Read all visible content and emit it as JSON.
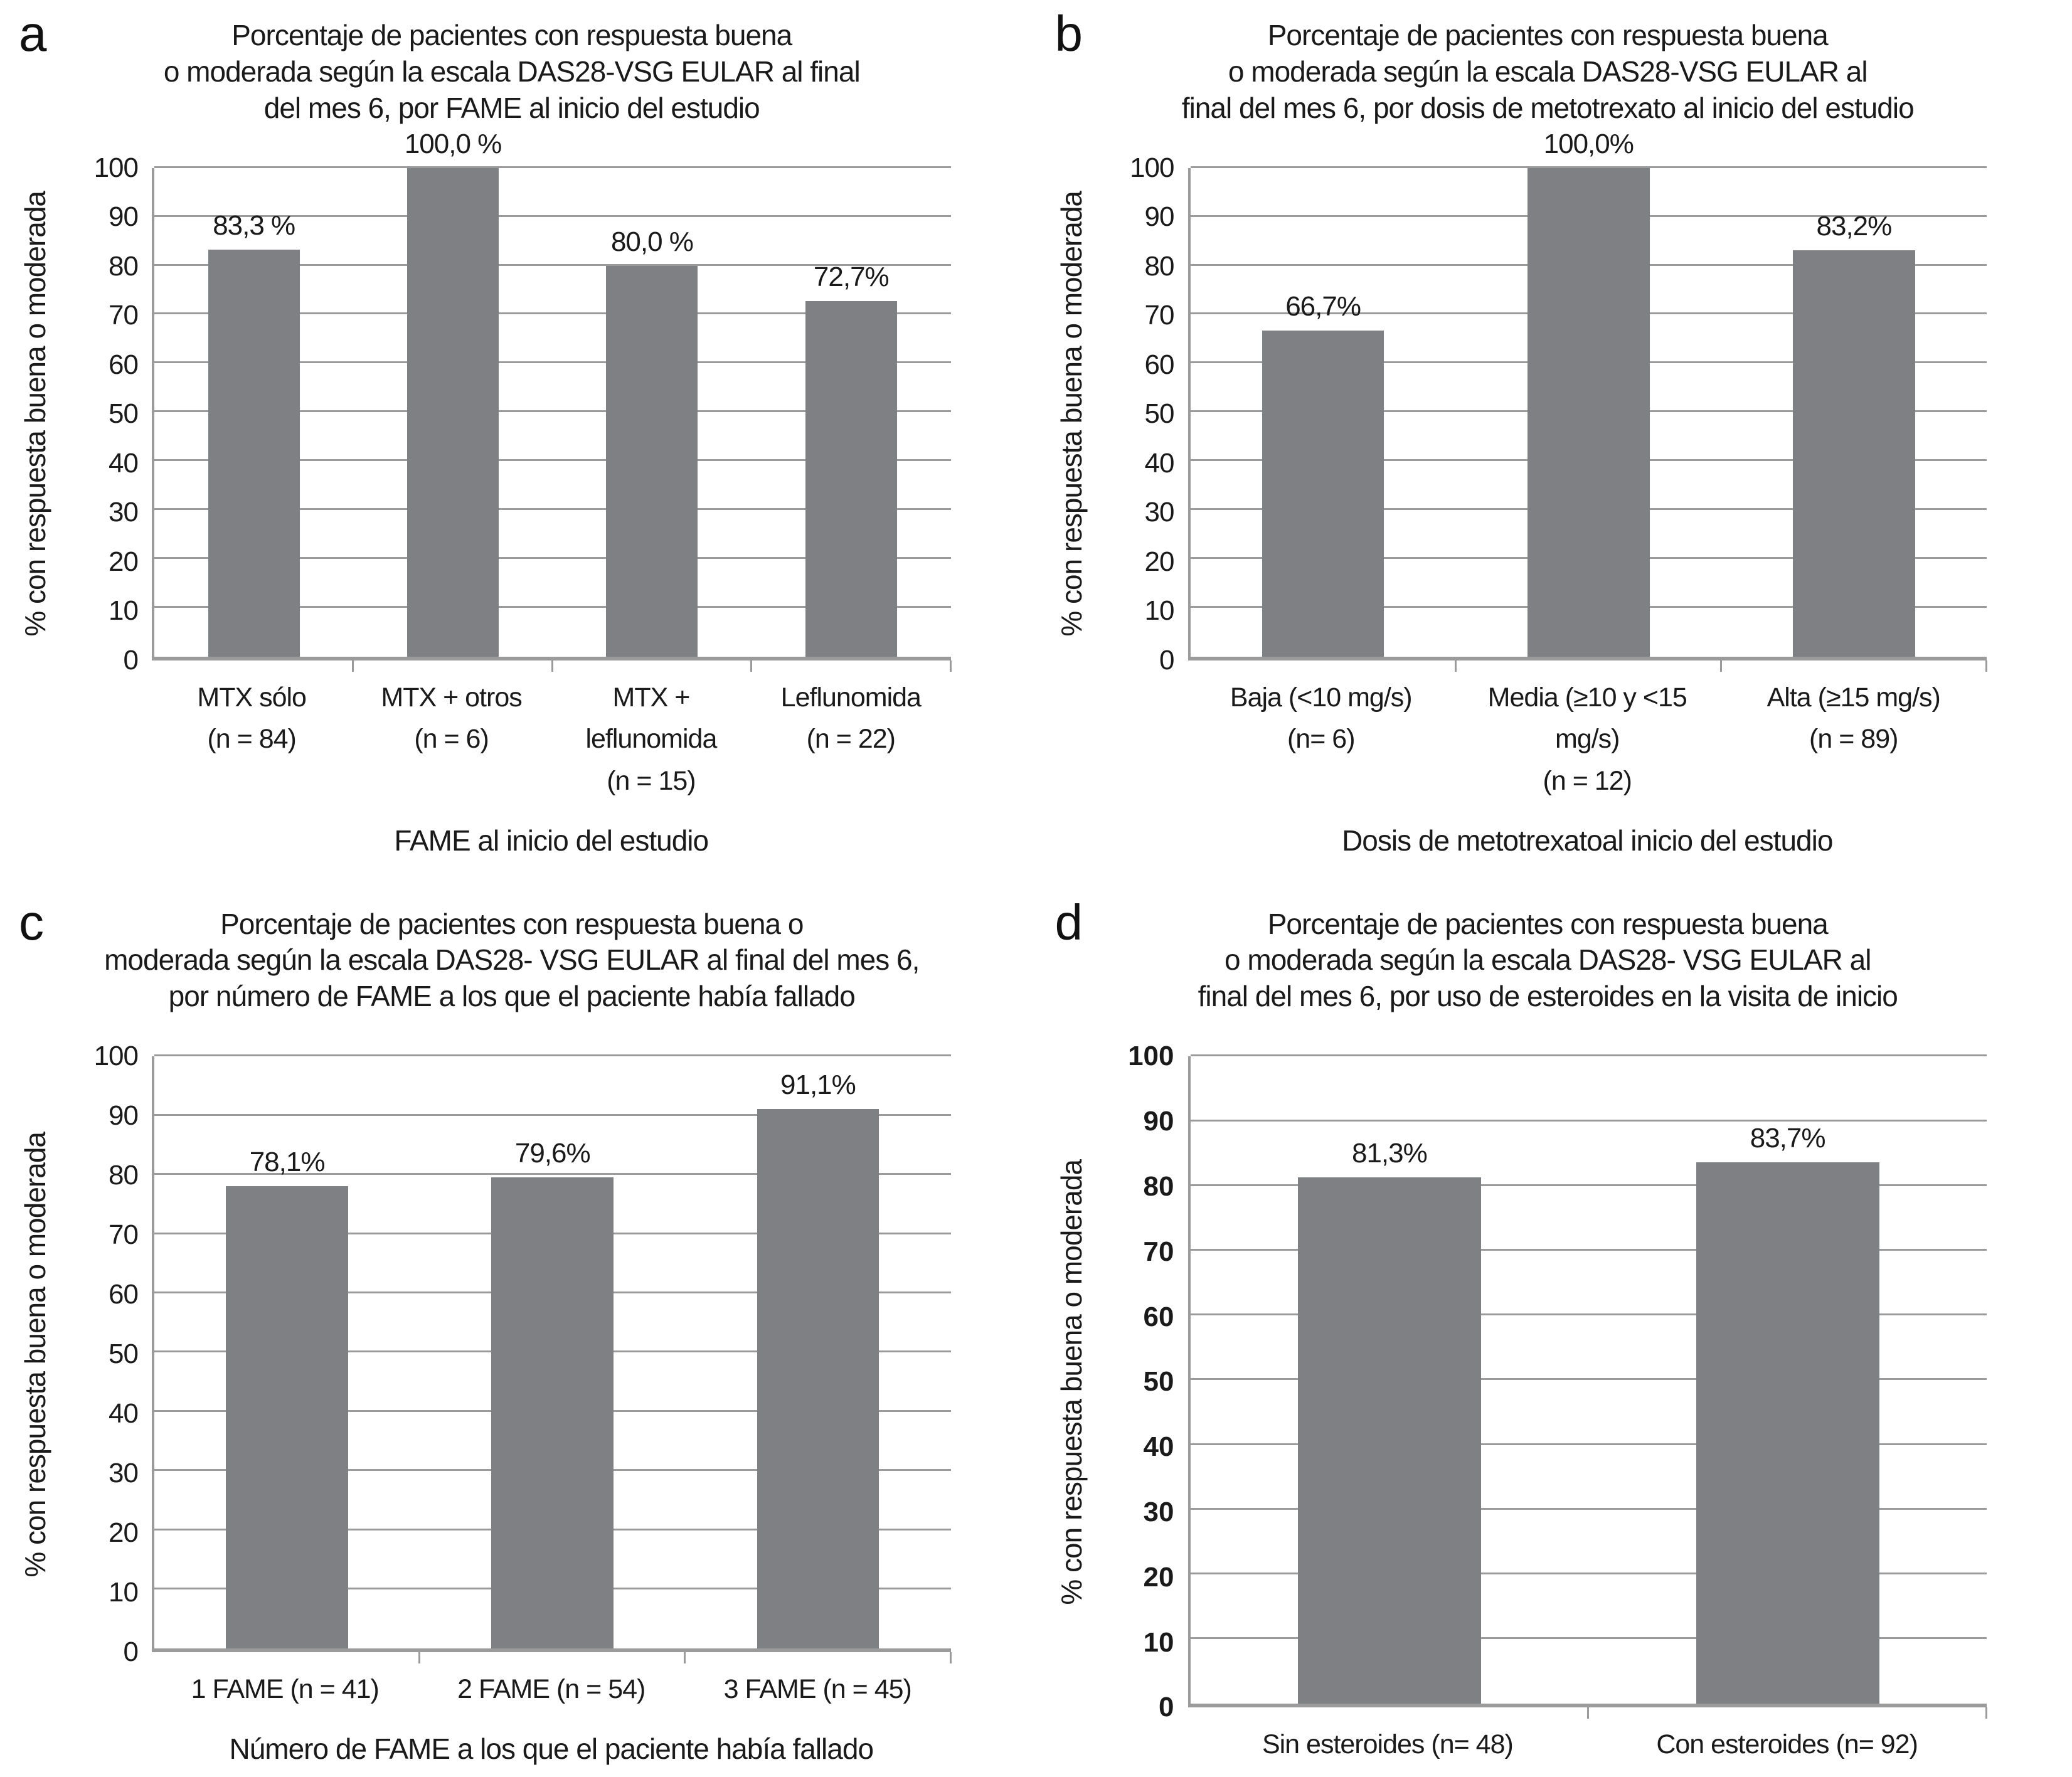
{
  "chart_data": [
    {
      "type": "bar",
      "panel_letter": "a",
      "title": "Porcentaje de pacientes con respuesta buena o moderada según la escala DAS28-VSG EULAR al final del mes 6, por FAME al inicio del estudio",
      "title_lines": [
        "Porcentaje de pacientes con respuesta buena",
        "o moderada según la escala DAS28-VSG EULAR al final",
        "del mes 6, por FAME al inicio del estudio"
      ],
      "ylabel": "% con respuesta buena o moderada",
      "xlabel": "FAME al inicio del estudio",
      "ylim": [
        0,
        100
      ],
      "ytick_step": 10,
      "grid": true,
      "legend": false,
      "bar_color": "#7e8084",
      "categories": [
        "MTX sólo (n = 84)",
        "MTX + otros (n = 6)",
        "MTX + leflunomida (n = 15)",
        "Leflunomida (n = 22)"
      ],
      "category_lines": [
        [
          "MTX sólo",
          "(n = 84)"
        ],
        [
          "MTX + otros",
          "(n = 6)"
        ],
        [
          "MTX + leflunomida",
          "(n = 15)"
        ],
        [
          "Leflunomida",
          "(n = 22)"
        ]
      ],
      "values": [
        83.3,
        100.0,
        80.0,
        72.7
      ],
      "value_labels": [
        "83,3 %",
        "100,0 %",
        "80,0 %",
        "72,7%"
      ]
    },
    {
      "type": "bar",
      "panel_letter": "b",
      "title": "Porcentaje de pacientes con respuesta buena o moderada según la escala DAS28-VSG EULAR al final del mes 6, por dosis de metotrexato al inicio del estudio",
      "title_lines": [
        "Porcentaje de pacientes con respuesta buena",
        "o moderada según la escala DAS28-VSG EULAR al",
        "final del mes 6, por dosis de metotrexato al inicio del estudio"
      ],
      "ylabel": "% con respuesta buena o moderada",
      "xlabel": "Dosis de metotrexatoal inicio del estudio",
      "ylim": [
        0,
        100
      ],
      "ytick_step": 10,
      "grid": true,
      "legend": false,
      "bar_color": "#7e8084",
      "categories": [
        "Baja (<10 mg/s) (n= 6)",
        "Media (≥10 y <15 mg/s) (n = 12)",
        "Alta (≥15 mg/s) (n = 89)"
      ],
      "category_lines": [
        [
          "Baja (<10 mg/s)",
          "(n= 6)"
        ],
        [
          "Media (≥10 y <15 mg/s)",
          "(n = 12)"
        ],
        [
          "Alta (≥15 mg/s)",
          "(n = 89)"
        ]
      ],
      "values": [
        66.7,
        100.0,
        83.2
      ],
      "value_labels": [
        "66,7%",
        "100,0%",
        "83,2%"
      ]
    },
    {
      "type": "bar",
      "panel_letter": "c",
      "title": "Porcentaje de pacientes con respuesta buena o moderada según la escala DAS28- VSG EULAR al final del mes 6, por número de FAME a los que el paciente había fallado",
      "title_lines": [
        "Porcentaje de pacientes con respuesta buena o",
        "moderada según la escala DAS28- VSG EULAR al final del mes 6,",
        "por número de FAME a los que el paciente había fallado"
      ],
      "ylabel": "% con respuesta buena o moderada",
      "xlabel": "Número de FAME a los que el paciente había fallado",
      "ylim": [
        0,
        100
      ],
      "ytick_step": 10,
      "grid": true,
      "legend": false,
      "bar_color": "#7e8084",
      "categories": [
        "1 FAME (n = 41)",
        "2 FAME (n = 54)",
        "3 FAME (n = 45)"
      ],
      "category_lines": [
        [
          "1 FAME (n = 41)"
        ],
        [
          "2 FAME (n = 54)"
        ],
        [
          "3 FAME (n = 45)"
        ]
      ],
      "values": [
        78.1,
        79.6,
        91.1
      ],
      "value_labels": [
        "78,1%",
        "79,6%",
        "91,1%"
      ]
    },
    {
      "type": "bar",
      "panel_letter": "d",
      "title": "Porcentaje de pacientes con respuesta buena o moderada según la escala DAS28- VSG EULAR al final del mes 6, por uso de esteroides en la visita de inicio",
      "title_lines": [
        "Porcentaje de pacientes con respuesta buena",
        "o moderada según la escala DAS28- VSG EULAR al",
        "final del mes 6, por uso de esteroides en la visita de inicio"
      ],
      "ylabel": "% con respuesta buena o moderada",
      "xlabel": "",
      "ylim": [
        0,
        100
      ],
      "ytick_step": 10,
      "grid": true,
      "legend": false,
      "bar_color": "#7e8084",
      "categories": [
        "Sin esteroides (n= 48)",
        "Con esteroides (n= 92)"
      ],
      "category_lines": [
        [
          "Sin esteroides (n= 48)"
        ],
        [
          "Con esteroides (n= 92)"
        ]
      ],
      "values": [
        81.3,
        83.7
      ],
      "value_labels": [
        "81,3%",
        "83,7%"
      ]
    }
  ]
}
